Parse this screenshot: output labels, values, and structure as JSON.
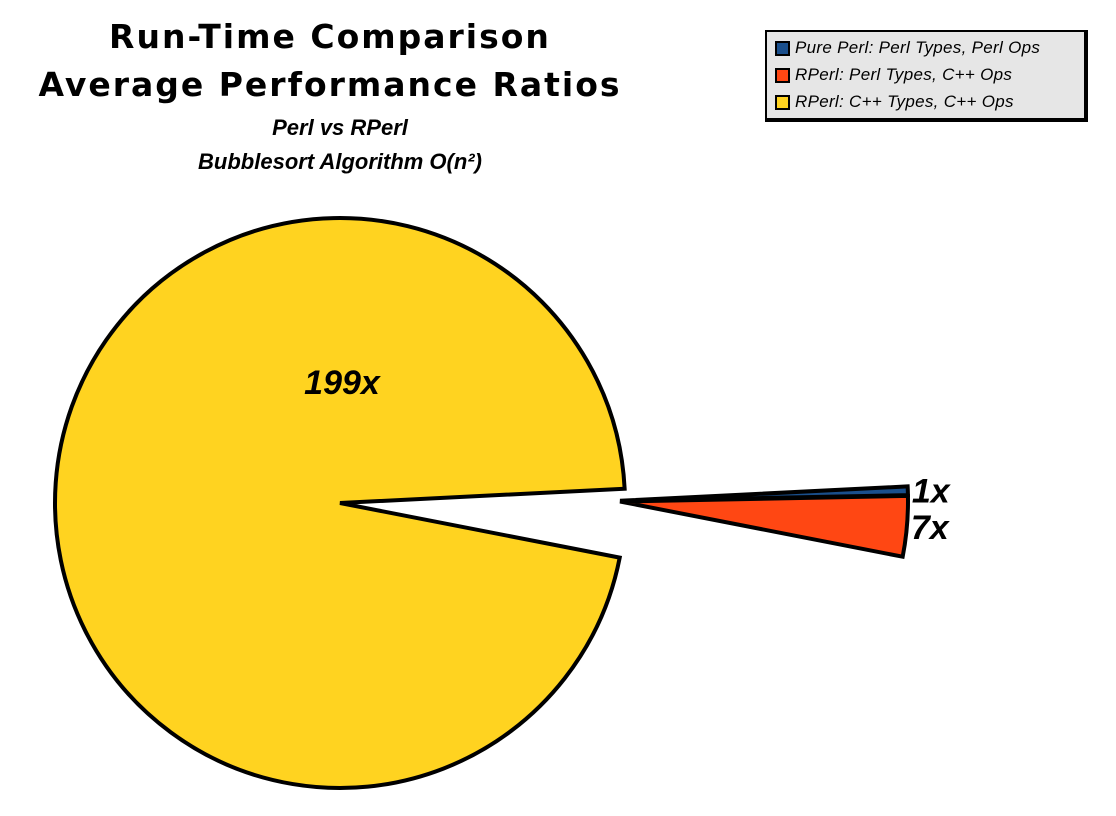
{
  "chart_data": {
    "type": "pie",
    "title": [
      "Run-Time Comparison",
      "Average Performance Ratios"
    ],
    "subtitle": [
      "Perl vs RPerl",
      "Bubblesort Algorithm O(n²)"
    ],
    "legend_position": "top-right",
    "exploded": true,
    "series": [
      {
        "name": "Pure Perl: Perl Types, Perl Ops",
        "value": 1,
        "label": "1x",
        "color": "#1a4f8c"
      },
      {
        "name": "RPerl: Perl Types, C++ Ops",
        "value": 7,
        "label": "7x",
        "color": "#ff4713"
      },
      {
        "name": "RPerl: C++ Types, C++ Ops",
        "value": 199,
        "label": "199x",
        "color": "#ffd320"
      }
    ]
  }
}
